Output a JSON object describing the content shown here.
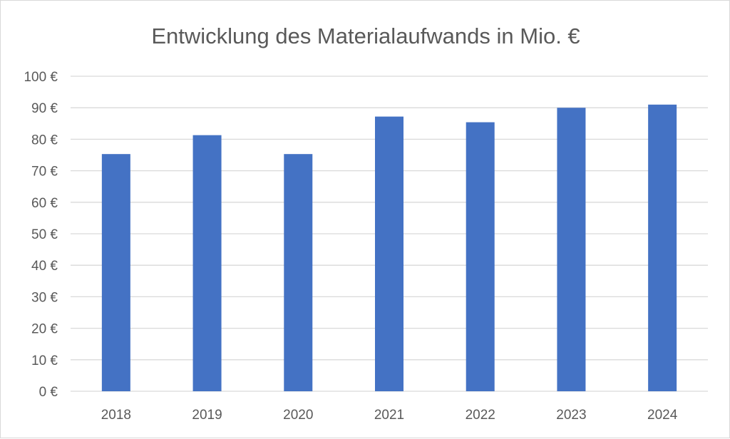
{
  "chart_data": {
    "type": "bar",
    "title": "Entwicklung des Materialaufwands in Mio. €",
    "xlabel": "",
    "ylabel": "",
    "categories": [
      "2018",
      "2019",
      "2020",
      "2021",
      "2022",
      "2023",
      "2024"
    ],
    "values": [
      75.3,
      81.3,
      75.3,
      87.2,
      85.4,
      90.0,
      91.0
    ],
    "ylim": [
      0,
      100
    ],
    "ytick_step": 10,
    "ytick_labels": [
      "0 €",
      "10 €",
      "20 €",
      "30 €",
      "40 €",
      "50 €",
      "60 €",
      "70 €",
      "80 €",
      "90 €",
      "100 €"
    ],
    "grid": true,
    "legend": "none",
    "colors": {
      "bar": "#4472C4",
      "grid": "#d9d9d9",
      "text": "#595959"
    }
  }
}
